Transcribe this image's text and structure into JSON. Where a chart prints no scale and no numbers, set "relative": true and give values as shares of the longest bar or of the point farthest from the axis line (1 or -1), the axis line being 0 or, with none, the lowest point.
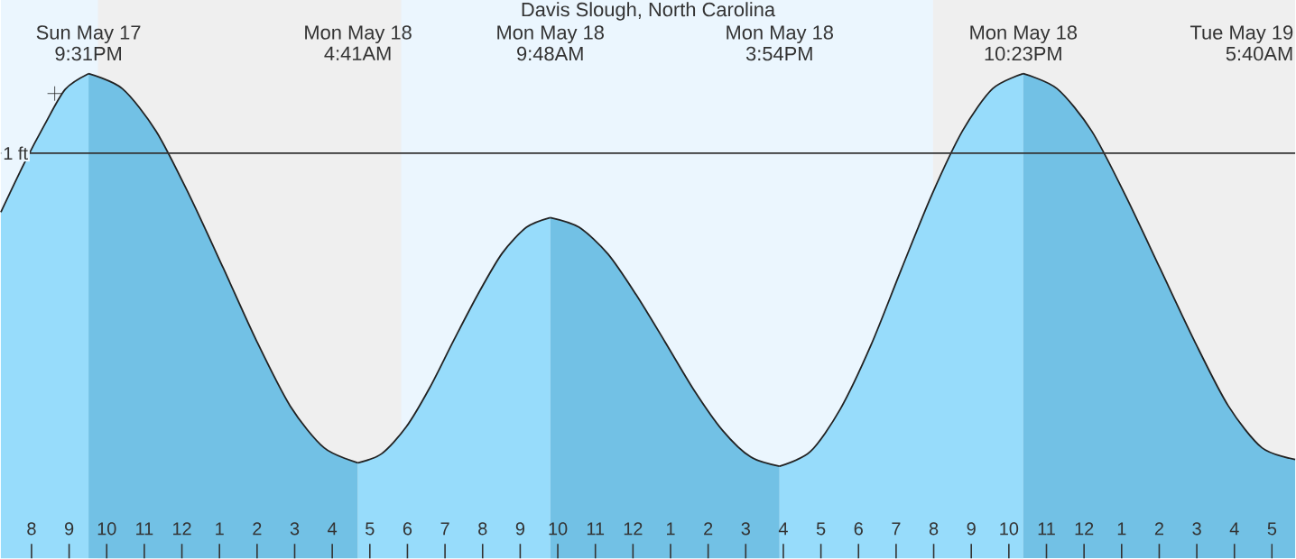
{
  "chart_data": {
    "type": "area",
    "title": "Davis Slough, North Carolina",
    "relative": true,
    "xlim": [
      "--05-17T19:11",
      "--05-19T05:37"
    ],
    "xticks": [
      {
        "value": "--05-17T20:00",
        "label": "8"
      },
      {
        "value": "--05-17T21:00",
        "label": "9"
      },
      {
        "value": "--05-17T22:00",
        "label": "10"
      },
      {
        "value": "--05-17T23:00",
        "label": "11"
      },
      {
        "value": "--05-18T00:00",
        "label": "12"
      },
      {
        "value": "--05-18T01:00",
        "label": "1"
      },
      {
        "value": "--05-18T02:00",
        "label": "2"
      },
      {
        "value": "--05-18T03:00",
        "label": "3"
      },
      {
        "value": "--05-18T04:00",
        "label": "4"
      },
      {
        "value": "--05-18T05:00",
        "label": "5"
      },
      {
        "value": "--05-18T06:00",
        "label": "6"
      },
      {
        "value": "--05-18T07:00",
        "label": "7"
      },
      {
        "value": "--05-18T08:00",
        "label": "8"
      },
      {
        "value": "--05-18T09:00",
        "label": "9"
      },
      {
        "value": "--05-18T10:00",
        "label": "10"
      },
      {
        "value": "--05-18T11:00",
        "label": "11"
      },
      {
        "value": "--05-18T12:00",
        "label": "12"
      },
      {
        "value": "--05-18T13:00",
        "label": "1"
      },
      {
        "value": "--05-18T14:00",
        "label": "2"
      },
      {
        "value": "--05-18T15:00",
        "label": "3"
      },
      {
        "value": "--05-18T16:00",
        "label": "4"
      },
      {
        "value": "--05-18T17:00",
        "label": "5"
      },
      {
        "value": "--05-18T18:00",
        "label": "6"
      },
      {
        "value": "--05-18T19:00",
        "label": "7"
      },
      {
        "value": "--05-18T20:00",
        "label": "8"
      },
      {
        "value": "--05-18T21:00",
        "label": "9"
      },
      {
        "value": "--05-18T22:00",
        "label": "10"
      },
      {
        "value": "--05-18T23:00",
        "label": "11"
      },
      {
        "value": "--05-19T00:00",
        "label": "12"
      },
      {
        "value": "--05-19T01:00",
        "label": "1"
      },
      {
        "value": "--05-19T02:00",
        "label": "2"
      },
      {
        "value": "--05-19T03:00",
        "label": "3"
      },
      {
        "value": "--05-19T04:00",
        "label": "4"
      },
      {
        "value": "--05-19T05:00",
        "label": "5"
      }
    ],
    "series": [
      {
        "color": "#97dcfb",
        "x": [
          "--05-17T19:11",
          "--05-17T19:48",
          "--05-17T20:21",
          "--05-17T20:54",
          "--05-17T21:31"
        ],
        "values": [
          0.714,
          0.814,
          0.895,
          0.968,
          1.0
        ]
      },
      {
        "color": "#72c1e5",
        "x": [
          "--05-17T21:31",
          "--05-17T22:25",
          "--05-17T23:19",
          "--05-18T00:12",
          "--05-18T01:06",
          "--05-18T01:59",
          "--05-18T02:53",
          "--05-18T03:47",
          "--05-18T04:41"
        ],
        "values": [
          1.0,
          0.969,
          0.881,
          0.749,
          0.599,
          0.449,
          0.314,
          0.228,
          0.197
        ]
      },
      {
        "color": "#97dcfb",
        "x": [
          "--05-18T04:41",
          "--05-18T05:19",
          "--05-18T05:58",
          "--05-18T06:36",
          "--05-18T07:14",
          "--05-18T07:53",
          "--05-18T08:31",
          "--05-18T09:10",
          "--05-18T09:48"
        ],
        "values": [
          0.197,
          0.216,
          0.271,
          0.353,
          0.45,
          0.546,
          0.629,
          0.683,
          0.703
        ]
      },
      {
        "color": "#72c1e5",
        "x": [
          "--05-18T09:48",
          "--05-18T10:34",
          "--05-18T11:20",
          "--05-18T12:05",
          "--05-18T12:51",
          "--05-18T13:37",
          "--05-18T14:23",
          "--05-18T15:08",
          "--05-18T15:54"
        ],
        "values": [
          0.703,
          0.683,
          0.628,
          0.544,
          0.447,
          0.348,
          0.264,
          0.209,
          0.19
        ]
      },
      {
        "color": "#97dcfb",
        "x": [
          "--05-18T15:54",
          "--05-18T16:43",
          "--05-18T17:31",
          "--05-18T18:20",
          "--05-18T19:08",
          "--05-18T19:57",
          "--05-18T20:46",
          "--05-18T21:34",
          "--05-18T22:23"
        ],
        "values": [
          0.19,
          0.22,
          0.308,
          0.44,
          0.595,
          0.75,
          0.882,
          0.969,
          1.0
        ]
      },
      {
        "color": "#72c1e5",
        "x": [
          "--05-18T22:23",
          "--05-18T23:17",
          "--05-19T00:12",
          "--05-19T01:06",
          "--05-19T02:01",
          "--05-19T02:56",
          "--05-19T03:50",
          "--05-19T04:44",
          "--05-19T05:37"
        ],
        "values": [
          1.0,
          0.969,
          0.882,
          0.749,
          0.599,
          0.449,
          0.315,
          0.228,
          0.204
        ]
      },
      {
        "type": "scatter",
        "marker": "cross",
        "color": "#222222",
        "x": [
          "--05-17T20:37"
        ],
        "values": [
          0.959
        ]
      }
    ],
    "ref_lines": [
      {
        "axis": "y",
        "value": 0.836,
        "label": "1 ft",
        "color": "#333333"
      }
    ],
    "bands": [
      {
        "axis": "x",
        "from": "--05-17T21:46",
        "to": "--05-18T05:50",
        "color": "#efefef"
      },
      {
        "axis": "x",
        "from": "--05-18T19:59",
        "to": "--05-19T05:37",
        "color": "#efefef"
      }
    ],
    "annotations": [
      "Sun May 17",
      "9:31PM",
      "Mon May 18",
      "4:41AM",
      "Mon May 18",
      "9:48AM",
      "Mon May 18",
      "3:54PM",
      "Mon May 18",
      "10:23PM",
      "Tue May 19",
      "5:40AM"
    ]
  }
}
